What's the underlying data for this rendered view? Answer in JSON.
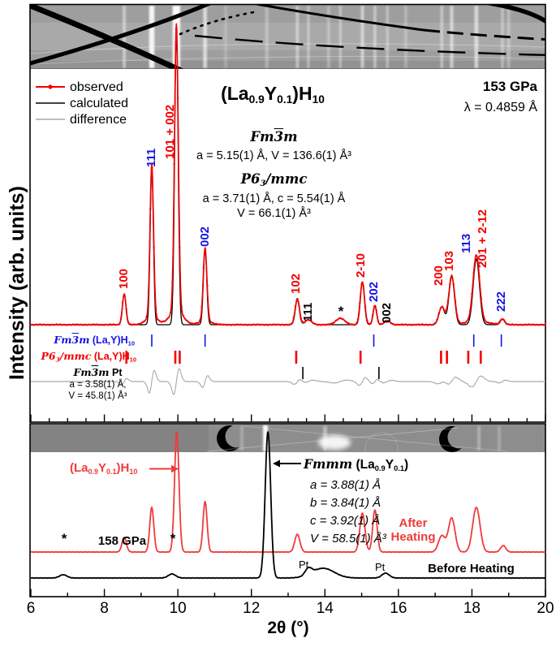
{
  "colors": {
    "observed_red": "#f40000",
    "calculated_black": "#000000",
    "difference_gray": "#a8a8a8",
    "hkl_blue": "#1414e6",
    "after_heating_red": "#ef3b3b",
    "strip_gray": "#9e9e9e"
  },
  "axis": {
    "xlabel": "2θ (°)",
    "ylabel": "Intensity (arb. units)",
    "x_ticks": [
      "6",
      "8",
      "10",
      "12",
      "14",
      "16",
      "18",
      "20"
    ],
    "xmin": 6,
    "xmax": 20
  },
  "legend": {
    "observed": "observed",
    "calculated": "calculated",
    "difference": "difference"
  },
  "main_panel": {
    "formula_parts": [
      [
        "(La",
        "t"
      ],
      [
        "0.9",
        "b"
      ],
      [
        "Y",
        "t"
      ],
      [
        "0.1",
        "b"
      ],
      [
        ")H",
        "t"
      ],
      [
        "10",
        "b"
      ]
    ],
    "pressure": "153 GPa",
    "wavelength": "λ = 0.4859 Å",
    "phase1_name_parts": [
      [
        "Fm",
        "mi"
      ],
      [
        "3",
        "mio"
      ],
      [
        "m",
        "mi"
      ]
    ],
    "phase1_params": "a = 5.15(1) Å, V = 136.6(1) Å³",
    "phase2_name_parts": [
      [
        "P6",
        "mi"
      ],
      [
        "3",
        "mib"
      ],
      [
        "/mmc",
        "mi"
      ]
    ],
    "phase2_params_1": "a = 3.71(1) Å, c = 5.54(1) Å",
    "phase2_params_2": "V = 66.1(1) Å³",
    "asterisk": "*",
    "peak_labels": [
      {
        "text": "100",
        "x": 8.54,
        "yb": 356,
        "color": "#f40000"
      },
      {
        "text": "111",
        "x": 9.29,
        "yb": 206,
        "color": "#1414e6"
      },
      {
        "text": "101 + 002",
        "x": 9.8,
        "yb": 196,
        "color": "#f40000"
      },
      {
        "text": "002",
        "x": 10.74,
        "yb": 304,
        "color": "#1414e6"
      },
      {
        "text": "102",
        "x": 13.22,
        "yb": 362,
        "color": "#f40000"
      },
      {
        "text": "111",
        "x": 13.55,
        "yb": 396,
        "color": "#000000"
      },
      {
        "text": "2-10",
        "x": 14.99,
        "yb": 342,
        "color": "#f40000"
      },
      {
        "text": "202",
        "x": 15.33,
        "yb": 372,
        "color": "#1414e6"
      },
      {
        "text": "002",
        "x": 15.7,
        "yb": 398,
        "color": "#000000"
      },
      {
        "text": "200",
        "x": 17.1,
        "yb": 352,
        "color": "#f40000"
      },
      {
        "text": "103",
        "x": 17.4,
        "yb": 334,
        "color": "#f40000"
      },
      {
        "text": "113",
        "x": 17.86,
        "yb": 312,
        "color": "#1414e6"
      },
      {
        "text": "201 + 2-12",
        "x": 18.3,
        "yb": 330,
        "color": "#f40000"
      },
      {
        "text": "222",
        "x": 18.8,
        "yb": 384,
        "color": "#1414e6"
      }
    ],
    "tick_rows": [
      {
        "name": "fm3m-LaYH10",
        "label_parts": [
          [
            "Fm",
            "mi"
          ],
          [
            "3",
            "mio"
          ],
          [
            "m",
            "mi"
          ],
          [
            " (La,Y)H",
            "t"
          ],
          [
            "10",
            "b"
          ]
        ],
        "color": "#1414e6",
        "positions": [
          9.29,
          10.74,
          15.33,
          18.05,
          18.8
        ]
      },
      {
        "name": "p63mmc-LaYH10",
        "label_parts": [
          [
            "P6",
            "mi"
          ],
          [
            "3",
            "mib"
          ],
          [
            "/mmc",
            "mi"
          ],
          [
            " (La,Y)H",
            "t"
          ],
          [
            "10",
            "b"
          ]
        ],
        "color": "#f40000",
        "positions": [
          8.6,
          9.93,
          10.05,
          13.22,
          14.97,
          17.16,
          17.32,
          17.9,
          18.24
        ]
      },
      {
        "name": "fm3m-Pt",
        "label_parts": [
          [
            "Fm",
            "mi"
          ],
          [
            "3",
            "mio"
          ],
          [
            "m",
            "mi"
          ],
          [
            " Pt",
            "t"
          ]
        ],
        "color": "#000000",
        "positions": [
          13.4,
          15.47
        ],
        "param_1": "a = 3.58(1) Å,",
        "param_2": "V = 45.8(1) Å³"
      }
    ]
  },
  "bottom_panel": {
    "pressure": "158 GPa",
    "red_formula_parts": [
      [
        "(La",
        "t"
      ],
      [
        "0.9",
        "b"
      ],
      [
        "Y",
        "t"
      ],
      [
        "0.1",
        "b"
      ],
      [
        ")H",
        "t"
      ],
      [
        "10",
        "b"
      ]
    ],
    "black_formula_parts": [
      [
        "Fmmm",
        "mi"
      ],
      [
        " (La",
        "t"
      ],
      [
        "0.9",
        "b"
      ],
      [
        "Y",
        "t"
      ],
      [
        "0.1",
        "b"
      ],
      [
        ")",
        "t"
      ]
    ],
    "black_params": [
      "a = 3.88(1) Å",
      "b = 3.84(1) Å",
      "c = 3.92(1) Å",
      "V = 58.5(1) Å³"
    ],
    "after_heating": "After\nHeating",
    "before_heating": "Before Heating",
    "pt_label": "Pt",
    "asterisk": "*"
  },
  "chart_data": [
    {
      "type": "line",
      "panel": "top",
      "title": "(La0.9Y0.1)H10",
      "subtitle": "153 GPa, λ = 0.4859 Å",
      "xlabel": "2θ (°)",
      "ylabel": "Intensity (arb. units)",
      "xlim": [
        6,
        20
      ],
      "grid": false,
      "legend_position": "top-left",
      "series": [
        {
          "name": "observed",
          "color": "#f40000",
          "style": "line+markers",
          "peaks_x_h_sigma": [
            [
              8.54,
              38,
              0.05
            ],
            [
              9.29,
              188,
              0.048
            ],
            [
              9.96,
              353,
              0.052
            ],
            [
              10.74,
              90,
              0.05
            ],
            [
              13.25,
              32,
              0.06
            ],
            [
              13.55,
              6,
              0.09
            ],
            [
              14.42,
              8,
              0.12
            ],
            [
              15.02,
              53,
              0.06
            ],
            [
              15.36,
              24,
              0.05
            ],
            [
              15.7,
              5,
              0.08
            ],
            [
              17.18,
              22,
              0.08
            ],
            [
              17.45,
              60,
              0.08
            ],
            [
              18.12,
              82,
              0.09
            ],
            [
              18.83,
              7,
              0.06
            ]
          ]
        },
        {
          "name": "calculated",
          "color": "#000000",
          "style": "line",
          "peaks_x_h_sigma": [
            [
              8.54,
              38,
              0.046
            ],
            [
              9.29,
              192,
              0.044
            ],
            [
              9.96,
              360,
              0.048
            ],
            [
              10.74,
              92,
              0.046
            ],
            [
              13.25,
              31,
              0.055
            ],
            [
              13.55,
              6,
              0.085
            ],
            [
              15.02,
              52,
              0.055
            ],
            [
              15.36,
              23,
              0.047
            ],
            [
              15.7,
              5,
              0.075
            ],
            [
              17.18,
              22,
              0.075
            ],
            [
              17.45,
              59,
              0.075
            ],
            [
              18.12,
              81,
              0.085
            ],
            [
              18.83,
              7,
              0.055
            ]
          ]
        },
        {
          "name": "difference",
          "color": "#a8a8a8",
          "style": "line"
        }
      ]
    },
    {
      "type": "line",
      "panel": "bottom",
      "xlim": [
        6,
        20
      ],
      "series": [
        {
          "name": "After Heating",
          "color": "#ef3b3b",
          "style": "line",
          "peaks_x_h_sigma": [
            [
              8.54,
              18,
              0.06
            ],
            [
              9.29,
              55,
              0.055
            ],
            [
              9.97,
              148,
              0.06
            ],
            [
              10.74,
              62,
              0.055
            ],
            [
              13.25,
              22,
              0.07
            ],
            [
              15.02,
              48,
              0.07
            ],
            [
              15.36,
              52,
              0.06
            ],
            [
              17.18,
              20,
              0.09
            ],
            [
              17.45,
              42,
              0.09
            ],
            [
              18.12,
              55,
              0.1
            ],
            [
              18.85,
              8,
              0.07
            ]
          ]
        },
        {
          "name": "Before Heating",
          "color": "#000000",
          "style": "line",
          "peaks_x_h_sigma": [
            [
              6.88,
              4,
              0.1
            ],
            [
              9.84,
              5,
              0.1
            ],
            [
              12.45,
              180,
              0.075
            ],
            [
              13.55,
              8,
              0.09
            ],
            [
              13.95,
              12,
              0.3
            ],
            [
              15.65,
              6,
              0.1
            ]
          ]
        }
      ]
    }
  ]
}
